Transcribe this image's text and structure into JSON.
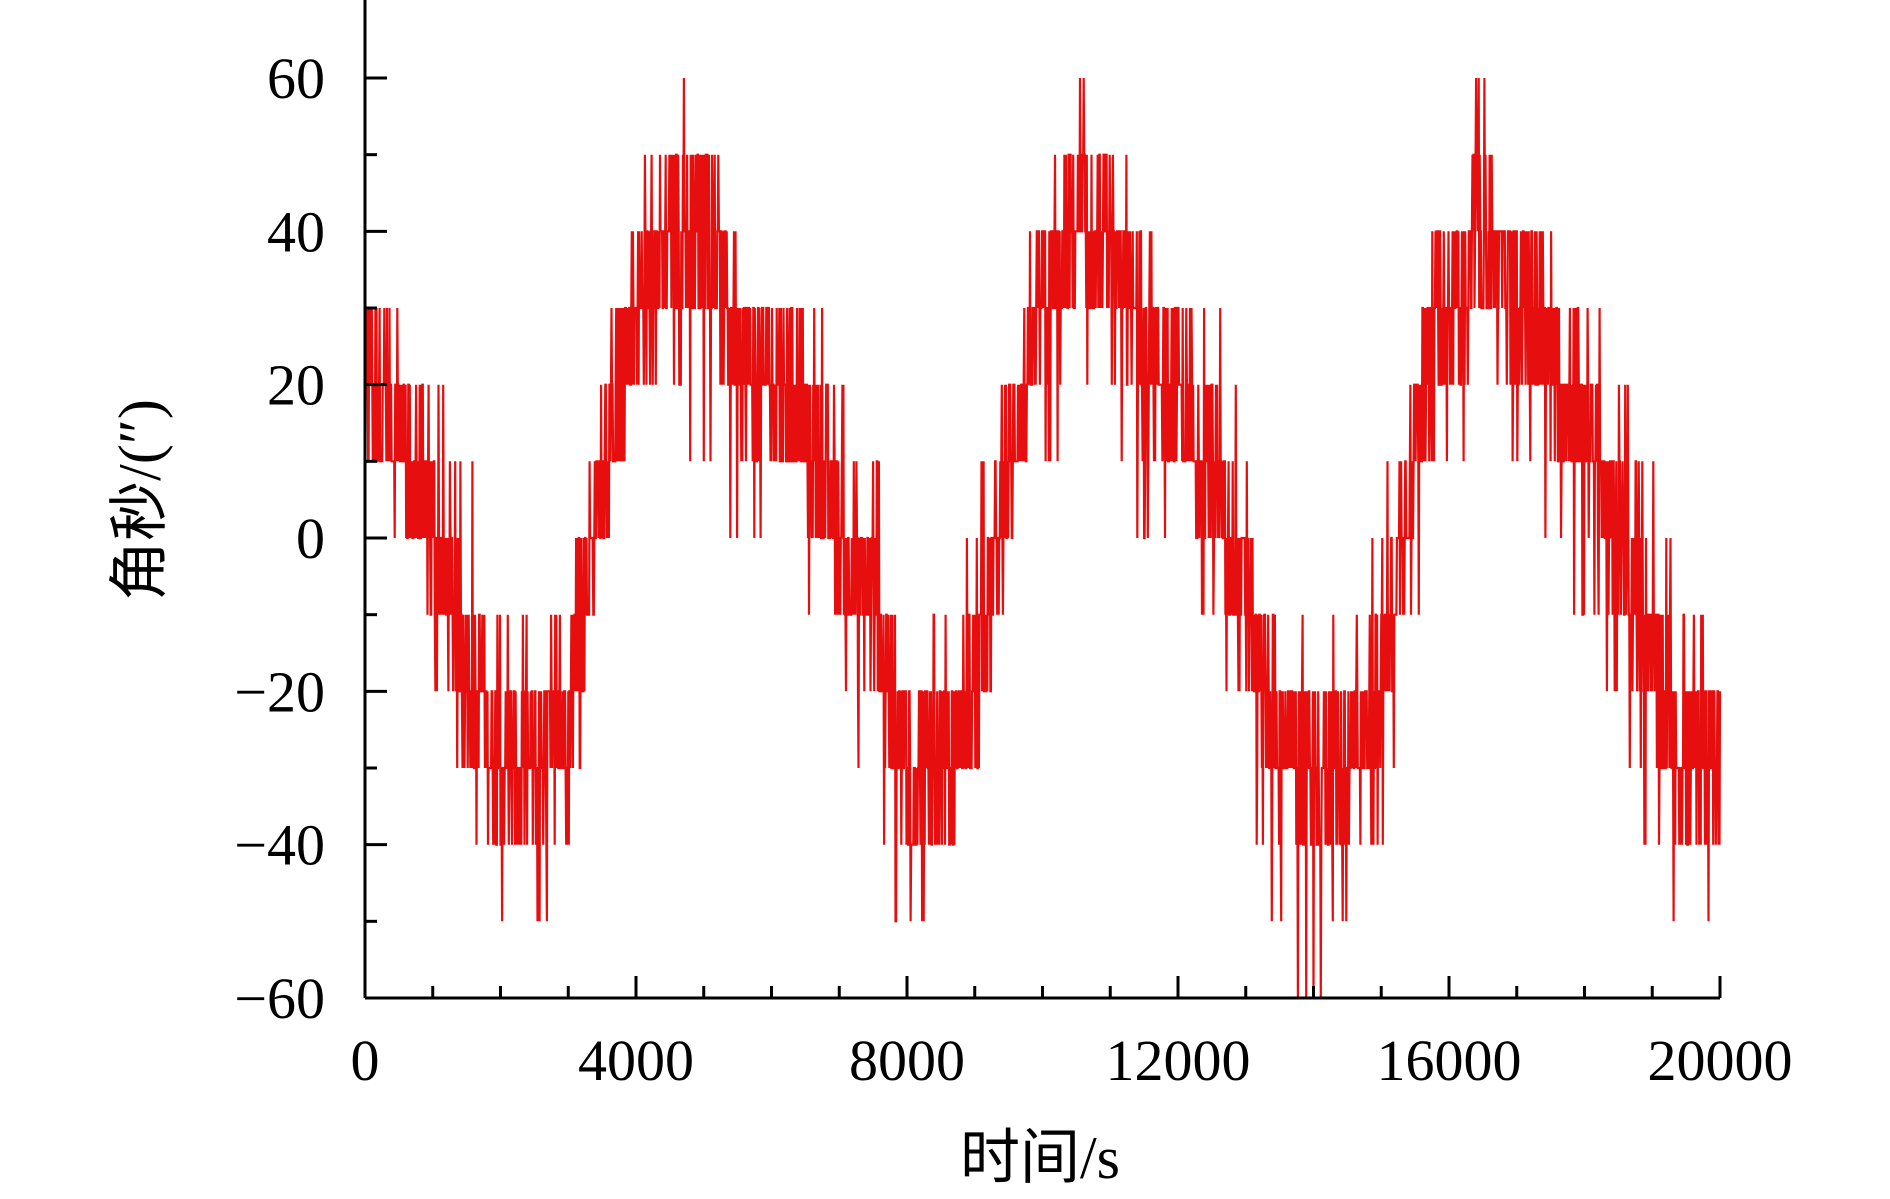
{
  "chart_data": {
    "type": "line",
    "xlabel": "时间/s",
    "ylabel": "角秒/(″)",
    "xlim": [
      0,
      20000
    ],
    "ylim": [
      -60,
      60
    ],
    "x_ticks": [
      0,
      4000,
      8000,
      12000,
      16000,
      20000
    ],
    "x_tick_labels": [
      "0",
      "4000",
      "8000",
      "12000",
      "16000",
      "20000"
    ],
    "y_ticks": [
      60,
      40,
      20,
      0,
      -20,
      -40,
      -60
    ],
    "y_tick_labels": [
      "60",
      "40",
      "20",
      "0",
      "−20",
      "−40",
      "−60"
    ],
    "grid": false,
    "legend": "none",
    "series_color": "#e60e0e",
    "series": [
      {
        "x": [
          0,
          500,
          1000,
          1500,
          2000,
          2500,
          3000,
          3500,
          4000,
          4500,
          5000,
          5500,
          6000,
          6500,
          7000,
          7500,
          8000,
          8500,
          9000,
          9500,
          10000,
          10500,
          11000,
          11500,
          12000,
          12500,
          13000,
          13500,
          14000,
          14500,
          15000,
          15500,
          16000,
          16500,
          17000,
          17500,
          18000,
          18500,
          19000,
          19500,
          20000
        ],
        "values": [
          20,
          15,
          0,
          -15,
          -30,
          -30,
          -25,
          10,
          30,
          40,
          40,
          25,
          20,
          15,
          0,
          -10,
          -30,
          -30,
          -20,
          10,
          30,
          40,
          35,
          25,
          20,
          10,
          -10,
          -25,
          -30,
          -30,
          -20,
          15,
          30,
          40,
          30,
          25,
          15,
          0,
          -15,
          -30,
          -25
        ],
        "min": [
          0,
          0,
          -20,
          -30,
          -50,
          -50,
          -40,
          0,
          20,
          20,
          10,
          0,
          0,
          -10,
          -20,
          -40,
          -50,
          -40,
          -30,
          0,
          10,
          20,
          10,
          0,
          0,
          -10,
          -30,
          -50,
          -60,
          -50,
          -40,
          -10,
          10,
          20,
          10,
          0,
          -10,
          -20,
          -40,
          -60,
          -40
        ],
        "max": [
          40,
          30,
          20,
          10,
          -10,
          -10,
          -10,
          20,
          40,
          60,
          50,
          40,
          30,
          30,
          20,
          10,
          -10,
          -10,
          0,
          30,
          40,
          60,
          50,
          40,
          30,
          30,
          10,
          -10,
          -10,
          -10,
          0,
          30,
          40,
          60,
          40,
          40,
          30,
          20,
          10,
          -10,
          -10
        ]
      }
    ]
  }
}
